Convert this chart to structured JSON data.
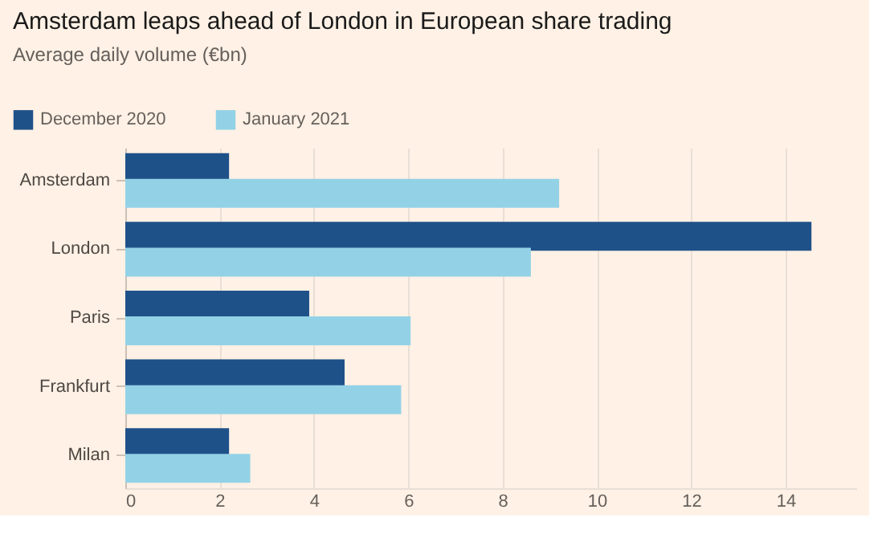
{
  "chart_data": {
    "type": "bar",
    "orientation": "horizontal",
    "title": "Amsterdam leaps ahead of London in European share trading",
    "subtitle": "Average daily volume (€bn)",
    "categories": [
      "Amsterdam",
      "London",
      "Paris",
      "Frankfurt",
      "Milan"
    ],
    "series": [
      {
        "name": "December 2020",
        "color": "#1f5189",
        "values": [
          2.2,
          14.55,
          3.9,
          4.65,
          2.2
        ]
      },
      {
        "name": "January 2021",
        "color": "#93d2e6",
        "values": [
          9.2,
          8.6,
          6.05,
          5.85,
          2.65
        ]
      }
    ],
    "xlim": [
      0,
      15.5
    ],
    "xticks": [
      0,
      2,
      4,
      6,
      8,
      10,
      12,
      14
    ],
    "grid": "x",
    "legend": "top left"
  }
}
